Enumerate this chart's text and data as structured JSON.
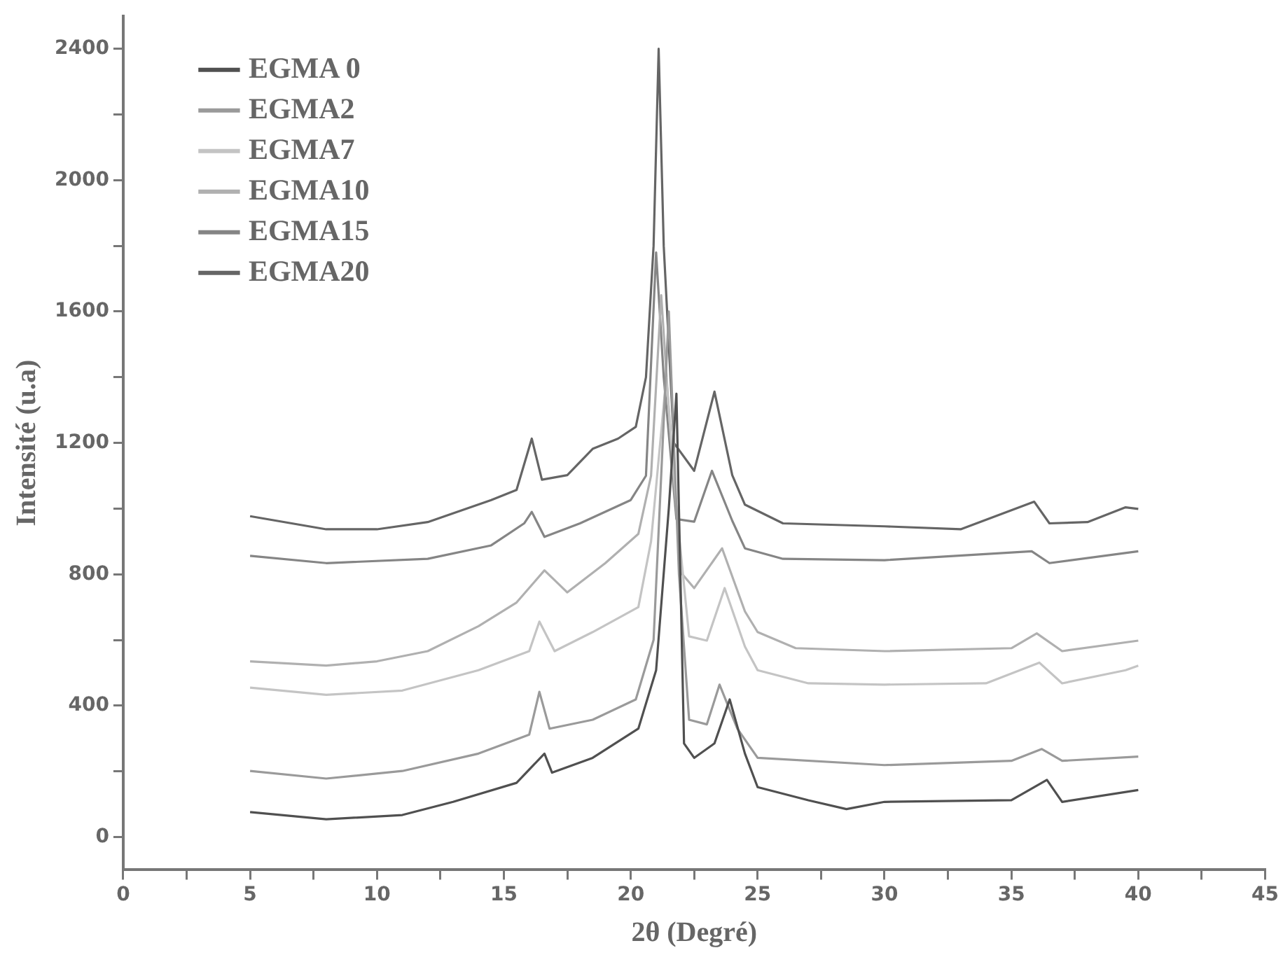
{
  "chart_data": {
    "type": "line",
    "xlabel": "2θ (Degré)",
    "ylabel": "Intensité (u.a)",
    "xlim": [
      0,
      45
    ],
    "ylim": [
      -100,
      2500
    ],
    "xticks": [
      0,
      {
        "value": 2.5,
        "label": null
      },
      5,
      {
        "value": 7.5,
        "label": null
      },
      10,
      {
        "value": 12.5,
        "label": null
      },
      15,
      {
        "value": 17.5,
        "label": null
      },
      20,
      {
        "value": 22.5,
        "label": null
      },
      25,
      {
        "value": 27.5,
        "label": null
      },
      30,
      {
        "value": 32.5,
        "label": null
      },
      35,
      {
        "value": 37.5,
        "label": null
      },
      40,
      {
        "value": 42.5,
        "label": null
      },
      45
    ],
    "yticks": [
      0,
      {
        "value": 200,
        "label": null
      },
      400,
      {
        "value": 600,
        "label": null
      },
      800,
      {
        "value": 1000,
        "label": null
      },
      1200,
      {
        "value": 1400,
        "label": null
      },
      1600,
      {
        "value": 1800,
        "label": null
      },
      2000,
      {
        "value": 2200,
        "label": null
      },
      2400
    ],
    "grid": false,
    "legend": "top left",
    "marker": "none",
    "line_style": "solid",
    "series": [
      {
        "name": "EGMA 0",
        "color": "#505050",
        "x": [
          5,
          8,
          11,
          13,
          15.5,
          16.6,
          16.9,
          18.5,
          20.3,
          21,
          21.5,
          21.8,
          22.1,
          22.5,
          23.3,
          23.9,
          24.5,
          25,
          27,
          28.5,
          30,
          35,
          36.4,
          37,
          40
        ],
        "values": [
          76,
          54,
          67,
          107,
          165,
          254,
          196,
          241,
          330,
          508,
          1000,
          1350,
          285,
          241,
          285,
          419,
          254,
          152,
          112,
          85,
          107,
          112,
          174,
          107,
          143
        ]
      },
      {
        "name": "EGMA2",
        "color": "#9a9a9a",
        "x": [
          5,
          8,
          11,
          14,
          16,
          16.4,
          16.8,
          18.5,
          20.2,
          20.9,
          21.5,
          21.9,
          22.3,
          23,
          23.5,
          24.2,
          25,
          30,
          35,
          36.2,
          37,
          40
        ],
        "values": [
          201,
          178,
          201,
          254,
          312,
          442,
          330,
          357,
          419,
          600,
          1600,
          800,
          357,
          343,
          464,
          330,
          241,
          219,
          232,
          268,
          232,
          245
        ]
      },
      {
        "name": "EGMA7",
        "color": "#c4c4c4",
        "x": [
          5,
          8,
          11,
          14,
          16,
          16.4,
          17,
          18.5,
          20.3,
          20.8,
          21.4,
          21.8,
          22.3,
          23,
          23.7,
          24.5,
          25,
          27,
          30,
          34,
          36.1,
          37,
          39.5,
          40
        ],
        "values": [
          455,
          433,
          446,
          508,
          566,
          656,
          566,
          624,
          700,
          900,
          1400,
          1000,
          611,
          598,
          758,
          580,
          508,
          468,
          464,
          468,
          531,
          468,
          508,
          522
        ]
      },
      {
        "name": "EGMA10",
        "color": "#b0b0b0",
        "x": [
          5,
          8,
          10,
          12,
          14,
          15.5,
          16.6,
          17.5,
          19,
          20.3,
          20.8,
          21.2,
          21.5,
          22,
          22.5,
          23.6,
          24.5,
          25,
          26.5,
          30,
          35,
          36,
          37,
          40
        ],
        "values": [
          535,
          522,
          535,
          566,
          642,
          714,
          812,
          745,
          834,
          923,
          1100,
          1650,
          1300,
          803,
          758,
          879,
          687,
          624,
          575,
          566,
          575,
          620,
          566,
          598
        ]
      },
      {
        "name": "EGMA15",
        "color": "#858585",
        "x": [
          5,
          8,
          12,
          14.5,
          15.8,
          16.1,
          16.6,
          18,
          20,
          20.6,
          21,
          21.3,
          21.8,
          22.5,
          23.2,
          24,
          24.5,
          26,
          30,
          35.8,
          36.5,
          40
        ],
        "values": [
          856,
          834,
          847,
          888,
          955,
          990,
          914,
          955,
          1026,
          1100,
          1780,
          1400,
          968,
          960,
          1115,
          963,
          879,
          847,
          843,
          870,
          834,
          870
        ]
      },
      {
        "name": "EGMA20",
        "color": "#656565",
        "x": [
          5,
          8,
          10,
          12,
          14.5,
          15.5,
          16.1,
          16.5,
          17.5,
          18.5,
          19.5,
          20.2,
          20.6,
          20.9,
          21.1,
          21.3,
          21.7,
          22.5,
          23.3,
          24,
          24.5,
          26,
          30,
          33,
          35.9,
          36.5,
          38,
          39.5,
          40
        ],
        "values": [
          977,
          937,
          937,
          959,
          1026,
          1057,
          1213,
          1088,
          1102,
          1182,
          1213,
          1249,
          1400,
          1800,
          2400,
          1800,
          1200,
          1115,
          1356,
          1102,
          1012,
          955,
          946,
          937,
          1021,
          955,
          959,
          1004,
          999
        ]
      }
    ]
  }
}
